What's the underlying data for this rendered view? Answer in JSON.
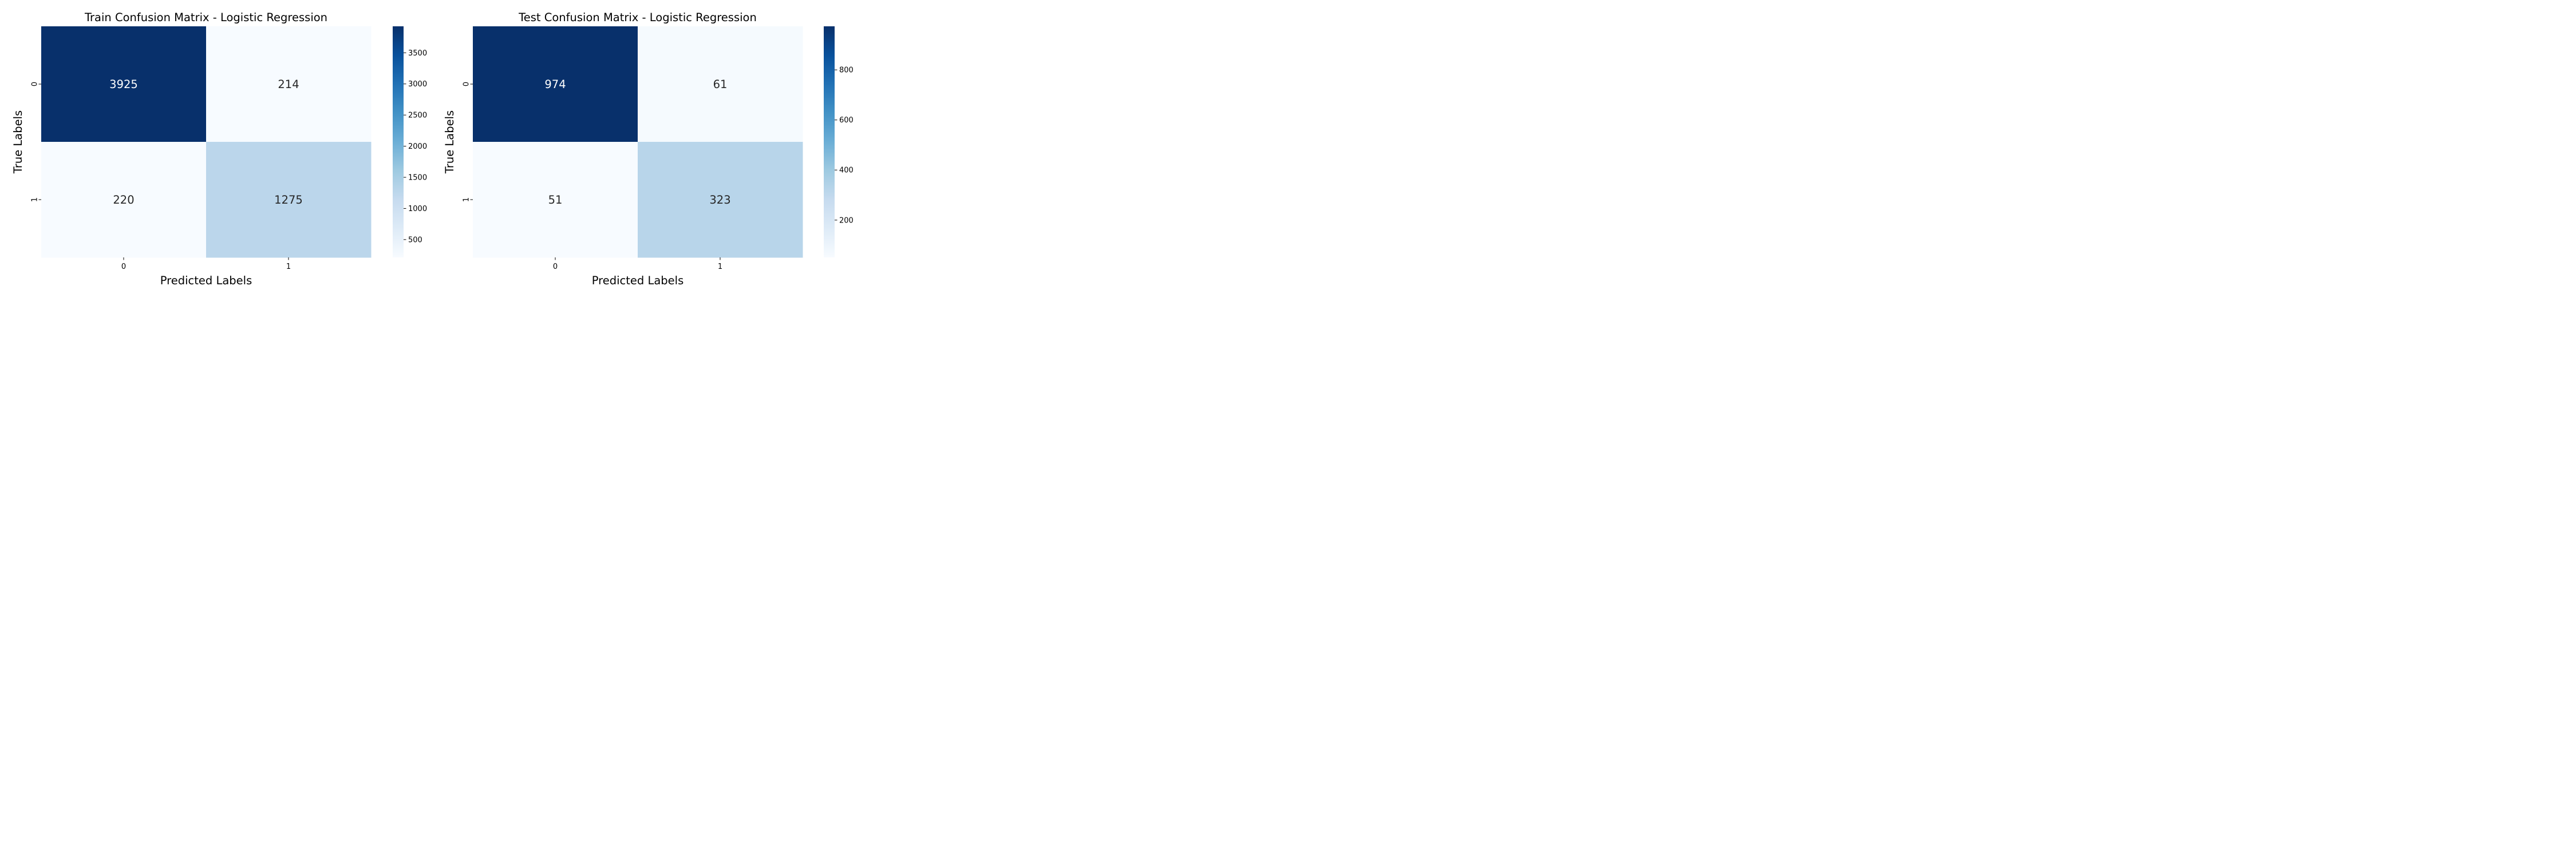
{
  "chart_data": [
    {
      "type": "heatmap",
      "title": "Train Confusion Matrix - Logistic Regression",
      "xlabel": "Predicted Labels",
      "ylabel": "True Labels",
      "x_categories": [
        "0",
        "1"
      ],
      "y_categories": [
        "0",
        "1"
      ],
      "values": [
        [
          3925,
          214
        ],
        [
          220,
          1275
        ]
      ],
      "colormap": "Blues",
      "colorbar": {
        "min": 214,
        "max": 3925,
        "ticks": [
          500,
          1000,
          1500,
          2000,
          2500,
          3000,
          3500
        ]
      }
    },
    {
      "type": "heatmap",
      "title": "Test Confusion Matrix - Logistic Regression",
      "xlabel": "Predicted Labels",
      "ylabel": "True Labels",
      "x_categories": [
        "0",
        "1"
      ],
      "y_categories": [
        "0",
        "1"
      ],
      "values": [
        [
          974,
          61
        ],
        [
          51,
          323
        ]
      ],
      "colormap": "Blues",
      "colorbar": {
        "min": 51,
        "max": 974,
        "ticks": [
          200,
          400,
          600,
          800
        ]
      }
    }
  ],
  "colors": {
    "blues_scale": [
      "#f7fbff",
      "#deebf7",
      "#c6dbef",
      "#9ecae1",
      "#6baed6",
      "#4292c6",
      "#2171b5",
      "#08519c",
      "#08306b"
    ],
    "text_dark": "#262626",
    "text_light": "#ffffff",
    "axis": "#000000"
  }
}
